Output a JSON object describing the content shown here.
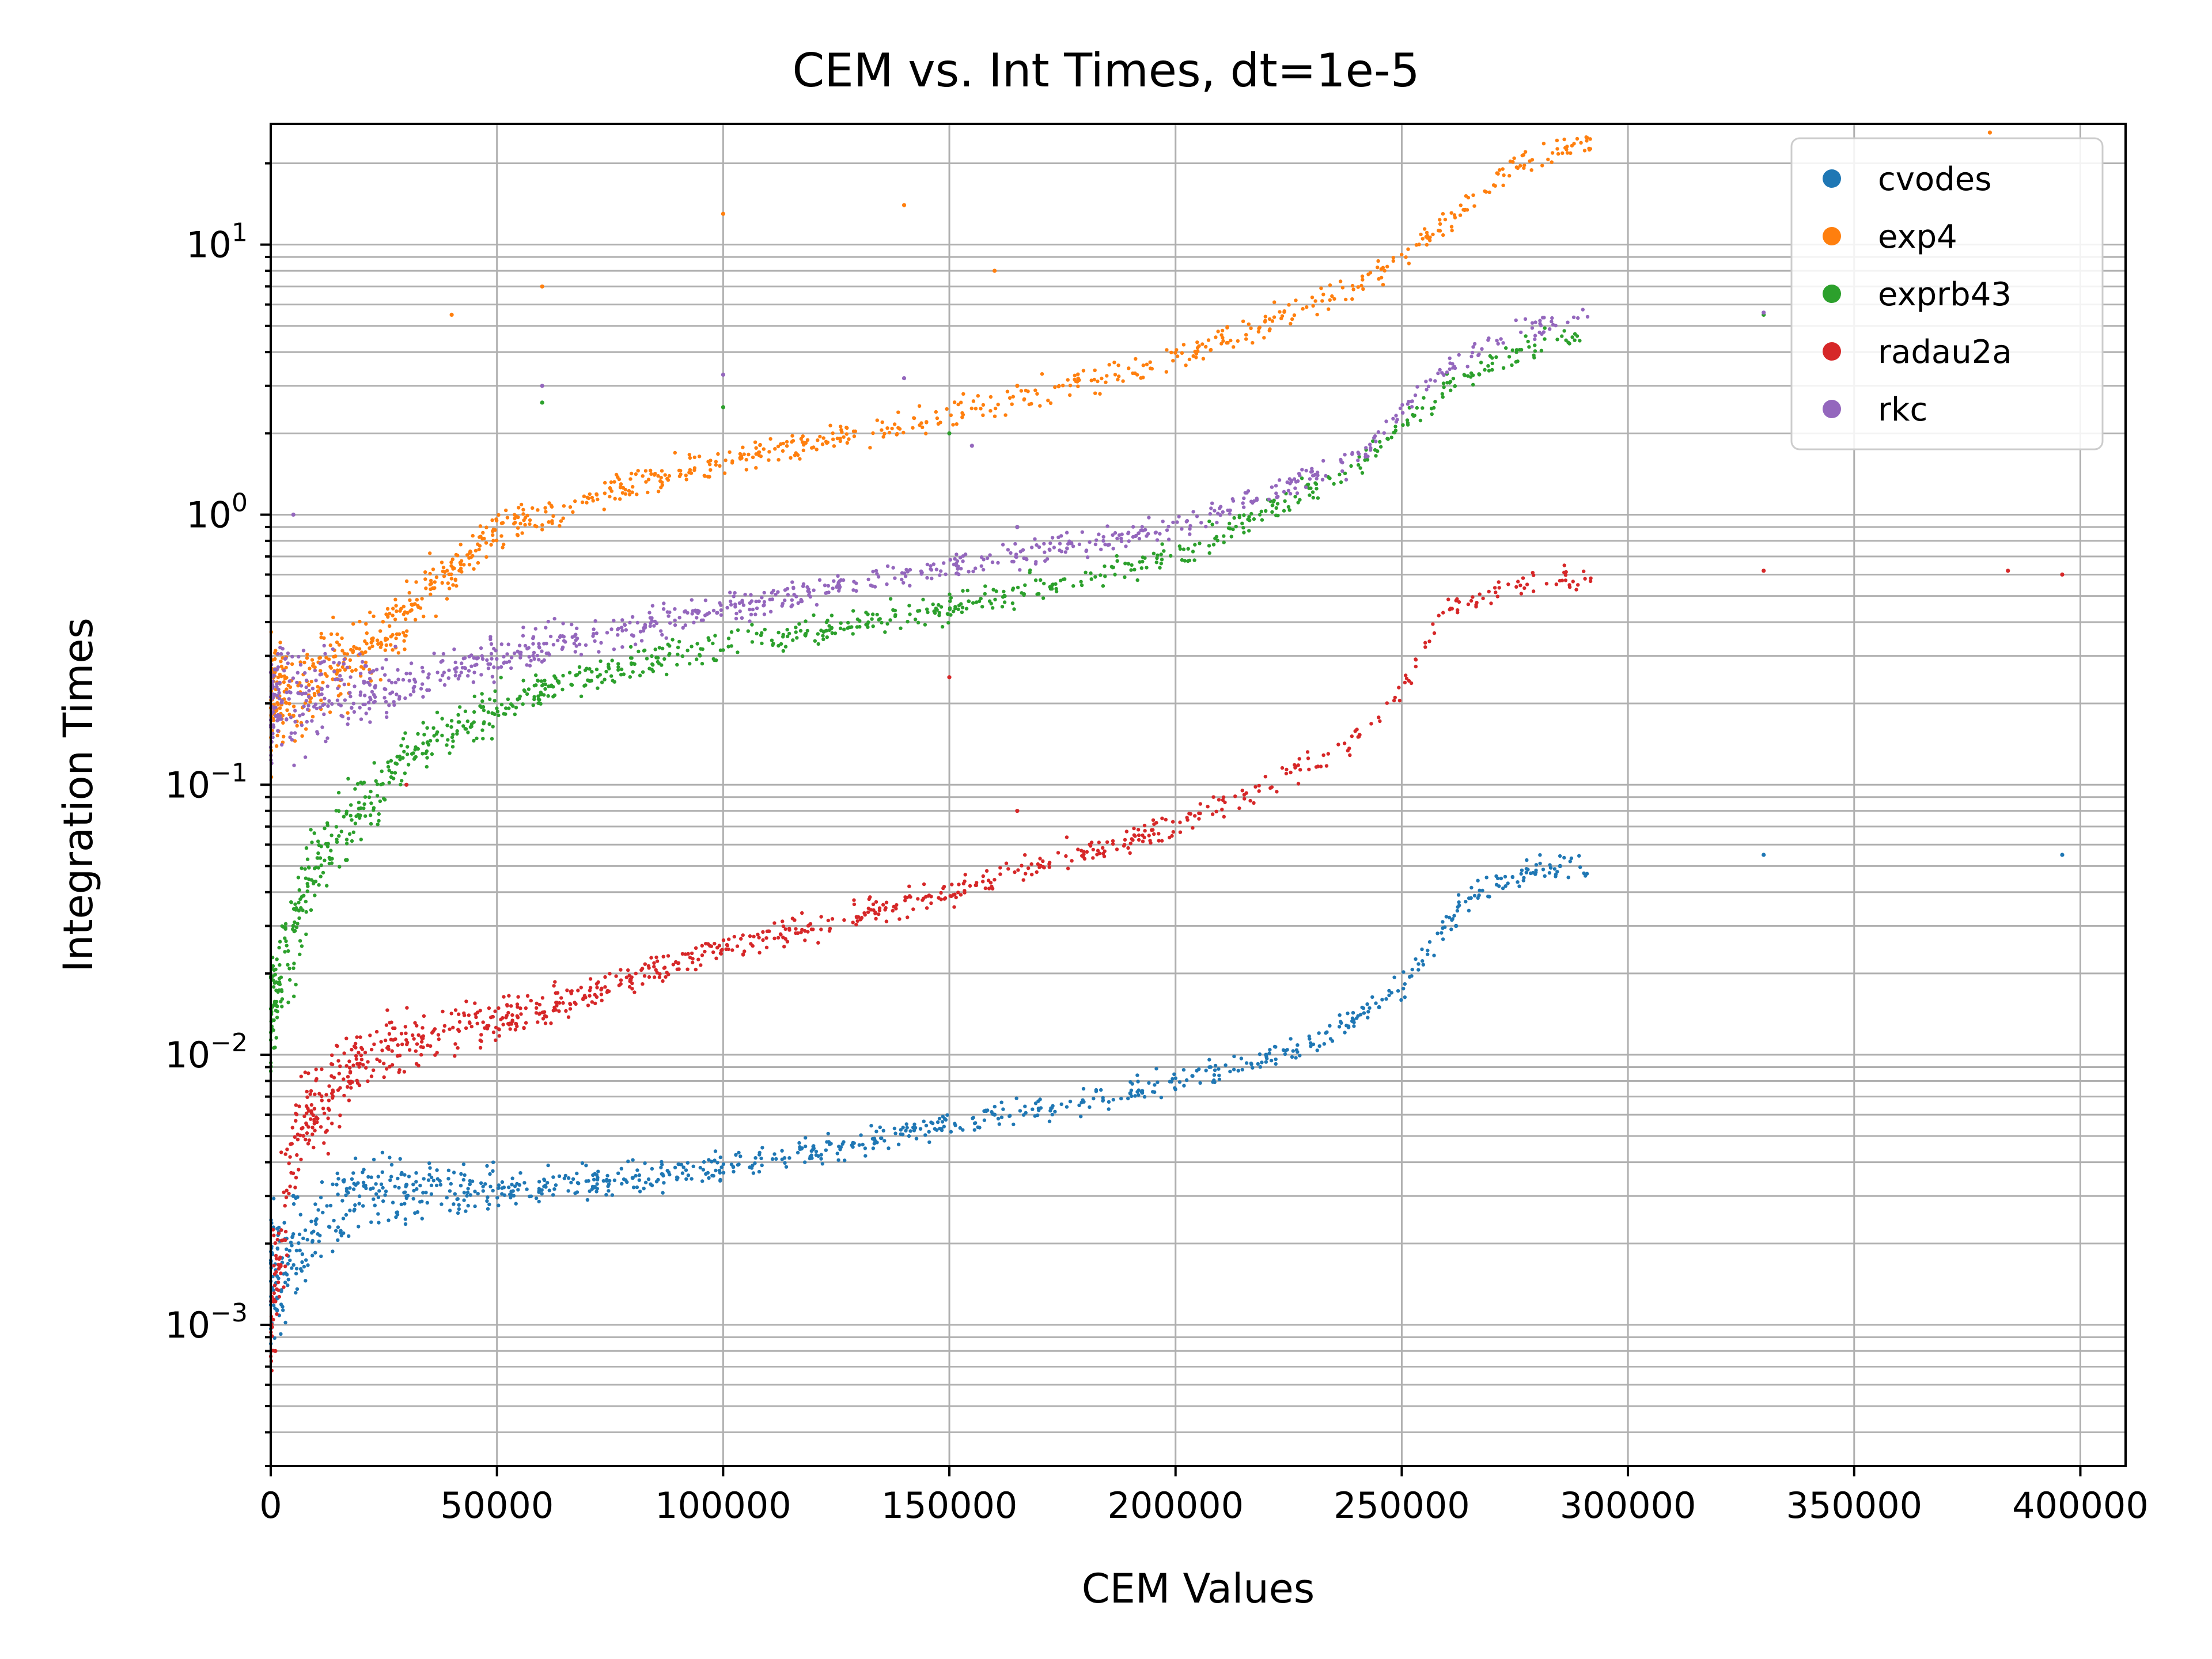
{
  "chart_data": {
    "type": "scatter",
    "title": "CEM vs. Int Times, dt=1e-5",
    "xlabel": "CEM Values",
    "ylabel": "Integration Times",
    "xlim": [
      0,
      410000
    ],
    "ylim": [
      0.0003,
      28
    ],
    "yscale": "log",
    "grid": true,
    "legend_position": "top-right",
    "x_ticks": [
      "0",
      "50000",
      "100000",
      "150000",
      "200000",
      "250000",
      "300000",
      "350000",
      "400000"
    ],
    "x_tick_values": [
      0,
      50000,
      100000,
      150000,
      200000,
      250000,
      300000,
      350000,
      400000
    ],
    "y_ticks": [
      {
        "base": "10",
        "exp": "−3",
        "value": 0.001
      },
      {
        "base": "10",
        "exp": "−2",
        "value": 0.01
      },
      {
        "base": "10",
        "exp": "−1",
        "value": 0.1
      },
      {
        "base": "10",
        "exp": "0",
        "value": 1
      },
      {
        "base": "10",
        "exp": "1",
        "value": 10
      }
    ],
    "series": [
      {
        "name": "cvodes",
        "color": "#1f77b4",
        "curve": [
          [
            0,
            0.0015
          ],
          [
            20000,
            0.0031
          ],
          [
            60000,
            0.0032
          ],
          [
            100000,
            0.0038
          ],
          [
            150000,
            0.0055
          ],
          [
            200000,
            0.008
          ],
          [
            230000,
            0.011
          ],
          [
            250000,
            0.018
          ],
          [
            265000,
            0.04
          ],
          [
            280000,
            0.048
          ],
          [
            292000,
            0.05
          ]
        ],
        "points": [
          [
            5000,
            0.003
          ],
          [
            30000,
            0.0033
          ],
          [
            80000,
            0.0035
          ],
          [
            120000,
            0.0045
          ],
          [
            160000,
            0.006
          ],
          [
            190000,
            0.0072
          ],
          [
            220000,
            0.01
          ],
          [
            245000,
            0.015
          ],
          [
            262000,
            0.03
          ],
          [
            285000,
            0.05
          ],
          [
            330000,
            0.055
          ],
          [
            396000,
            0.055
          ]
        ]
      },
      {
        "name": "exp4",
        "color": "#ff7f0e",
        "curve": [
          [
            0,
            0.2
          ],
          [
            20000,
            0.3
          ],
          [
            50000,
            0.9
          ],
          [
            100000,
            1.6
          ],
          [
            150000,
            2.3
          ],
          [
            200000,
            3.8
          ],
          [
            240000,
            7.0
          ],
          [
            260000,
            12.0
          ],
          [
            275000,
            20.0
          ],
          [
            292000,
            24.0
          ]
        ],
        "points": [
          [
            5000,
            0.18
          ],
          [
            40000,
            5.5
          ],
          [
            60000,
            7.0
          ],
          [
            100000,
            13.0
          ],
          [
            140000,
            14.0
          ],
          [
            160000,
            8.0
          ],
          [
            165000,
            3.0
          ],
          [
            380000,
            26.0
          ]
        ]
      },
      {
        "name": "exprb43",
        "color": "#2ca02c",
        "curve": [
          [
            0,
            0.015
          ],
          [
            10000,
            0.05
          ],
          [
            30000,
            0.13
          ],
          [
            60000,
            0.23
          ],
          [
            100000,
            0.33
          ],
          [
            150000,
            0.45
          ],
          [
            200000,
            0.7
          ],
          [
            240000,
            1.5
          ],
          [
            260000,
            3.0
          ],
          [
            275000,
            4.0
          ],
          [
            292000,
            4.8
          ]
        ],
        "points": [
          [
            5000,
            0.03
          ],
          [
            60000,
            2.6
          ],
          [
            100000,
            2.5
          ],
          [
            150000,
            2.0
          ],
          [
            165000,
            0.9
          ],
          [
            330000,
            5.5
          ]
        ]
      },
      {
        "name": "radau2a",
        "color": "#d62728",
        "curve": [
          [
            0,
            0.001
          ],
          [
            5000,
            0.005
          ],
          [
            20000,
            0.01
          ],
          [
            60000,
            0.015
          ],
          [
            100000,
            0.025
          ],
          [
            150000,
            0.04
          ],
          [
            200000,
            0.07
          ],
          [
            235000,
            0.13
          ],
          [
            250000,
            0.22
          ],
          [
            260000,
            0.45
          ],
          [
            275000,
            0.55
          ],
          [
            292000,
            0.58
          ]
        ],
        "points": [
          [
            1000,
            0.0008
          ],
          [
            30000,
            0.1
          ],
          [
            150000,
            0.25
          ],
          [
            165000,
            0.08
          ],
          [
            330000,
            0.62
          ],
          [
            384000,
            0.62
          ],
          [
            396000,
            0.6
          ]
        ]
      },
      {
        "name": "rkc",
        "color": "#9467bd",
        "curve": [
          [
            0,
            0.2
          ],
          [
            20000,
            0.22
          ],
          [
            50000,
            0.3
          ],
          [
            100000,
            0.45
          ],
          [
            150000,
            0.65
          ],
          [
            200000,
            0.9
          ],
          [
            240000,
            1.6
          ],
          [
            260000,
            3.5
          ],
          [
            275000,
            4.8
          ],
          [
            292000,
            5.3
          ]
        ],
        "points": [
          [
            5000,
            1.0
          ],
          [
            60000,
            3.0
          ],
          [
            100000,
            3.3
          ],
          [
            140000,
            3.2
          ],
          [
            155000,
            1.8
          ],
          [
            165000,
            0.9
          ],
          [
            330000,
            5.6
          ]
        ]
      }
    ]
  }
}
